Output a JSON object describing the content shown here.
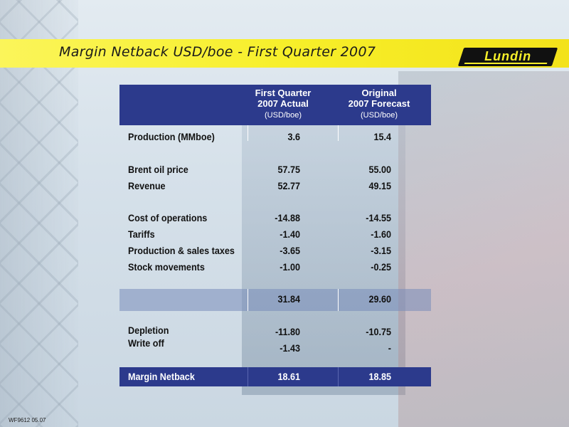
{
  "title": "Margin Netback USD/boe - First Quarter 2007",
  "logo_text": "Lundin",
  "footer_code": "WF9612 05.07",
  "colors": {
    "banner": "#f7ef2a",
    "header_band": "#2c3a8c"
  },
  "columns": [
    {
      "line1": "First Quarter",
      "line2": "2007 Actual",
      "unit": "(USD/boe)"
    },
    {
      "line1": "Original",
      "line2": "2007 Forecast",
      "unit": "(USD/boe)"
    }
  ],
  "rows": {
    "production": {
      "label": "Production (MMboe)",
      "actual": "3.6",
      "forecast": "15.4"
    },
    "brent": {
      "label": "Brent oil price",
      "actual": "57.75",
      "forecast": "55.00"
    },
    "revenue": {
      "label": "Revenue",
      "actual": "52.77",
      "forecast": "49.15"
    },
    "cost_ops": {
      "label": "Cost of operations",
      "actual": "-14.88",
      "forecast": "-14.55"
    },
    "tariffs": {
      "label": "Tariffs",
      "actual": "-1.40",
      "forecast": "-1.60"
    },
    "prod_taxes": {
      "label": "Production & sales taxes",
      "actual": "-3.65",
      "forecast": "-3.15"
    },
    "stock": {
      "label": "Stock movements",
      "actual": "-1.00",
      "forecast": "-0.25"
    },
    "subtotal": {
      "label": "",
      "actual": "31.84",
      "forecast": "29.60"
    },
    "depletion": {
      "label": "Depletion",
      "actual": "-11.80",
      "forecast": "-10.75"
    },
    "write_off": {
      "label": "Write off",
      "actual": "-1.43",
      "forecast": "-"
    },
    "netback": {
      "label": "Margin Netback",
      "actual": "18.61",
      "forecast": "18.85"
    }
  }
}
